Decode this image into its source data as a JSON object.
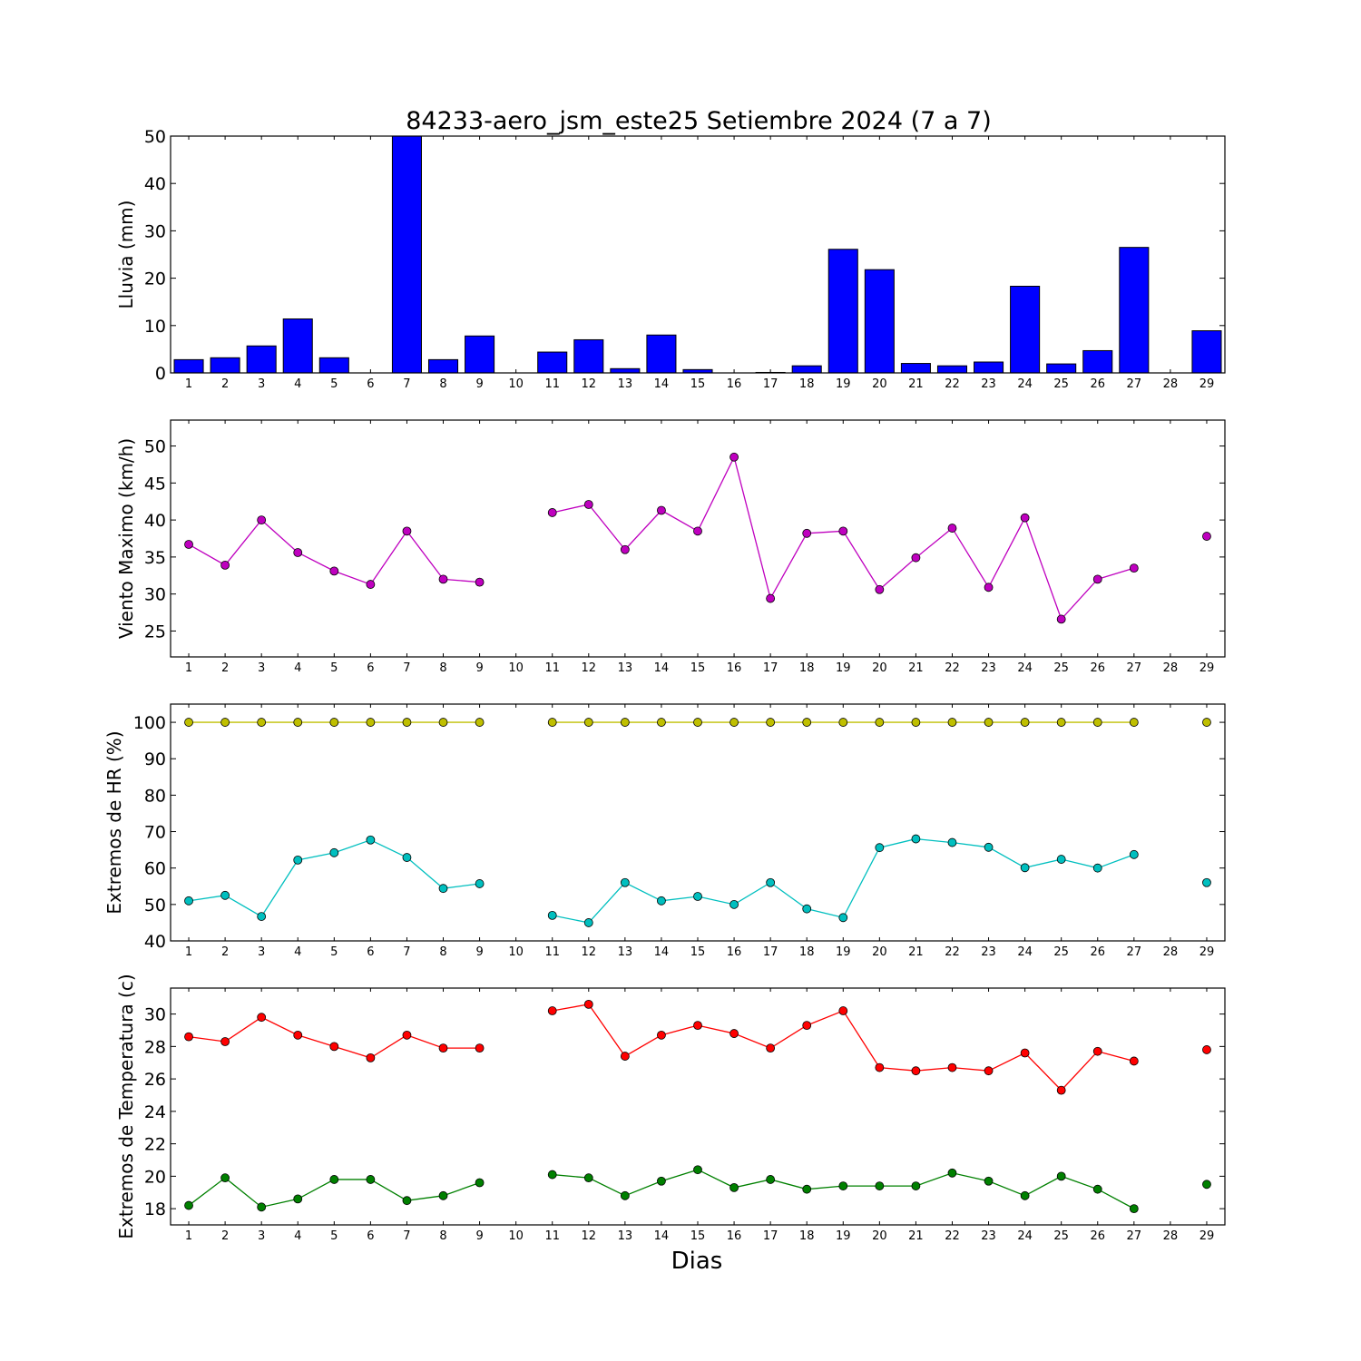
{
  "title": "84233-aero_jsm_este25 Setiembre 2024  (7 a 7)",
  "xlabel": "Dias",
  "colors": {
    "rain": "#0000ff",
    "wind": "#bf00bf",
    "hr_max": "#bfbf00",
    "hr_min": "#00bfbf",
    "t_max": "#ff0000",
    "t_min": "#008000"
  },
  "chart_data": [
    {
      "type": "bar",
      "ylabel": "Lluvia (mm)",
      "ylim": [
        0,
        50
      ],
      "yticks": [
        0,
        10,
        20,
        30,
        40,
        50
      ],
      "categories": [
        "1",
        "2",
        "3",
        "4",
        "5",
        "6",
        "7",
        "8",
        "9",
        "10",
        "11",
        "12",
        "13",
        "14",
        "15",
        "16",
        "17",
        "18",
        "19",
        "20",
        "21",
        "22",
        "23",
        "24",
        "25",
        "26",
        "27",
        "28",
        "29"
      ],
      "series": [
        {
          "color_key": "rain",
          "values": [
            2.8,
            3.2,
            5.7,
            11.4,
            3.2,
            0,
            50,
            2.8,
            7.8,
            0,
            4.4,
            7.0,
            0.9,
            8.0,
            0.7,
            0,
            0.1,
            1.5,
            26.1,
            21.8,
            2.0,
            1.5,
            2.3,
            18.3,
            1.9,
            4.7,
            26.5,
            0,
            8.9
          ]
        }
      ]
    },
    {
      "type": "line",
      "ylabel": "Viento Maximo (km/h)",
      "ylim": [
        21.5,
        53.5
      ],
      "yticks": [
        25,
        30,
        35,
        40,
        45,
        50
      ],
      "categories": [
        "1",
        "2",
        "3",
        "4",
        "5",
        "6",
        "7",
        "8",
        "9",
        "10",
        "11",
        "12",
        "13",
        "14",
        "15",
        "16",
        "17",
        "18",
        "19",
        "20",
        "21",
        "22",
        "23",
        "24",
        "25",
        "26",
        "27",
        "28",
        "29"
      ],
      "series": [
        {
          "color_key": "wind",
          "values": [
            36.7,
            33.9,
            40.0,
            35.6,
            33.1,
            31.3,
            38.5,
            32.0,
            31.6,
            null,
            41.0,
            42.1,
            36.0,
            41.3,
            38.5,
            48.5,
            29.4,
            38.2,
            38.5,
            30.6,
            34.9,
            38.9,
            30.9,
            40.3,
            26.6,
            32.0,
            33.5,
            null,
            37.8
          ]
        }
      ]
    },
    {
      "type": "line",
      "ylabel": "Extremos de HR (%)",
      "ylim": [
        40,
        105
      ],
      "yticks": [
        40,
        50,
        60,
        70,
        80,
        90,
        100
      ],
      "categories": [
        "1",
        "2",
        "3",
        "4",
        "5",
        "6",
        "7",
        "8",
        "9",
        "10",
        "11",
        "12",
        "13",
        "14",
        "15",
        "16",
        "17",
        "18",
        "19",
        "20",
        "21",
        "22",
        "23",
        "24",
        "25",
        "26",
        "27",
        "28",
        "29"
      ],
      "series": [
        {
          "color_key": "hr_max",
          "values": [
            100,
            100,
            100,
            100,
            100,
            100,
            100,
            100,
            100,
            null,
            100,
            100,
            100,
            100,
            100,
            100,
            100,
            100,
            100,
            100,
            100,
            100,
            100,
            100,
            100,
            100,
            100,
            null,
            100
          ]
        },
        {
          "color_key": "hr_min",
          "values": [
            51.0,
            52.5,
            46.7,
            62.2,
            64.2,
            67.7,
            62.9,
            54.4,
            55.7,
            null,
            47.0,
            45.0,
            56.0,
            51.0,
            52.2,
            50.0,
            56.0,
            48.8,
            46.4,
            65.6,
            68.0,
            67.0,
            65.7,
            60.1,
            62.4,
            60.0,
            63.7,
            null,
            56.0
          ]
        }
      ]
    },
    {
      "type": "line",
      "ylabel": "Extremos de Temperatura (c)",
      "ylim": [
        17,
        31.6
      ],
      "yticks": [
        18,
        20,
        22,
        24,
        26,
        28,
        30
      ],
      "categories": [
        "1",
        "2",
        "3",
        "4",
        "5",
        "6",
        "7",
        "8",
        "9",
        "10",
        "11",
        "12",
        "13",
        "14",
        "15",
        "16",
        "17",
        "18",
        "19",
        "20",
        "21",
        "22",
        "23",
        "24",
        "25",
        "26",
        "27",
        "28",
        "29"
      ],
      "series": [
        {
          "color_key": "t_max",
          "values": [
            28.6,
            28.3,
            29.8,
            28.7,
            28.0,
            27.3,
            28.7,
            27.9,
            27.9,
            null,
            30.2,
            30.6,
            27.4,
            28.7,
            29.3,
            28.8,
            27.9,
            29.3,
            30.2,
            26.7,
            26.5,
            26.7,
            26.5,
            27.6,
            25.3,
            27.7,
            27.1,
            null,
            27.8
          ]
        },
        {
          "color_key": "t_min",
          "values": [
            18.2,
            19.9,
            18.1,
            18.6,
            19.8,
            19.8,
            18.5,
            18.8,
            19.6,
            null,
            20.1,
            19.9,
            18.8,
            19.7,
            20.4,
            19.3,
            19.8,
            19.2,
            19.4,
            19.4,
            19.4,
            20.2,
            19.7,
            18.8,
            20.0,
            19.2,
            18.0,
            null,
            19.5
          ]
        }
      ]
    }
  ]
}
